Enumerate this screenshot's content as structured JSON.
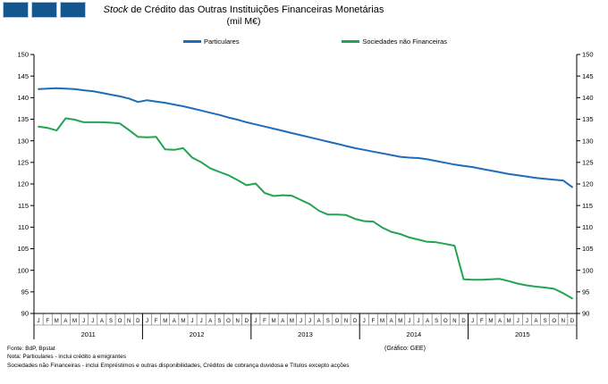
{
  "header": {
    "title_italic": "Stock",
    "title_rest": " de Crédito das Outras Instituições Financeiras Monetárias",
    "subtitle": "(mil M€)"
  },
  "logo": {
    "square_count": 3,
    "square_color": "#15568e",
    "square_border_color": "#b3c9dd"
  },
  "footer": {
    "source": "Fonte: BdP, Bpstat",
    "note1": "Nota: Particulares - inclui crédito a emigrantes",
    "note2": "Sociedades não Financeiras - inclui Empréstimos e outras disponibilidades, Créditos de cobrança duvidosa e Títulos excepto acções",
    "credit": "(Gráfico: GEE)"
  },
  "chart_data": {
    "type": "line",
    "title": "Stock de Crédito das Outras Instituições Financeiras Monetárias",
    "subtitle": "(mil M€)",
    "ylabel": "",
    "xlabel": "",
    "ylim": [
      90,
      150
    ],
    "ytick_step": 5,
    "grid": false,
    "legend_position": "top",
    "dual_y_axis": true,
    "axis_color": "#000000",
    "minor_line_color": "#666666",
    "years": [
      "2011",
      "2012",
      "2013",
      "2014",
      "2015"
    ],
    "month_labels": [
      "J",
      "F",
      "M",
      "A",
      "M",
      "J",
      "J",
      "A",
      "S",
      "O",
      "N",
      "D"
    ],
    "series": [
      {
        "name": "Particulares",
        "color": "#1f6cb8",
        "values": [
          142.0,
          142.1,
          142.2,
          142.1,
          142.0,
          141.7,
          141.5,
          141.1,
          140.7,
          140.3,
          139.8,
          139.0,
          139.4,
          139.1,
          138.8,
          138.4,
          138.0,
          137.5,
          137.0,
          136.5,
          136.0,
          135.4,
          134.9,
          134.3,
          133.8,
          133.3,
          132.8,
          132.3,
          131.8,
          131.3,
          130.8,
          130.3,
          129.8,
          129.3,
          128.8,
          128.3,
          127.9,
          127.5,
          127.1,
          126.7,
          126.3,
          126.1,
          126.0,
          125.7,
          125.3,
          124.9,
          124.5,
          124.2,
          123.9,
          123.5,
          123.1,
          122.7,
          122.3,
          122.0,
          121.7,
          121.4,
          121.2,
          121.0,
          120.8,
          119.3
        ]
      },
      {
        "name": "Sociedades não Financeiras",
        "color": "#22a452",
        "values": [
          133.3,
          133.0,
          132.4,
          135.2,
          134.9,
          134.3,
          134.3,
          134.3,
          134.2,
          134.0,
          132.5,
          130.9,
          130.8,
          130.9,
          128.0,
          127.9,
          128.3,
          126.1,
          125.0,
          123.6,
          122.8,
          122.0,
          120.9,
          119.7,
          120.1,
          117.9,
          117.2,
          117.4,
          117.3,
          116.3,
          115.3,
          113.8,
          112.9,
          112.9,
          112.8,
          111.9,
          111.4,
          111.3,
          109.9,
          108.9,
          108.4,
          107.6,
          107.1,
          106.6,
          106.5,
          106.1,
          105.7,
          97.9,
          97.8,
          97.8,
          97.9,
          98.0,
          97.5,
          96.9,
          96.5,
          96.2,
          96.0,
          95.7,
          94.7,
          93.5
        ]
      }
    ]
  }
}
